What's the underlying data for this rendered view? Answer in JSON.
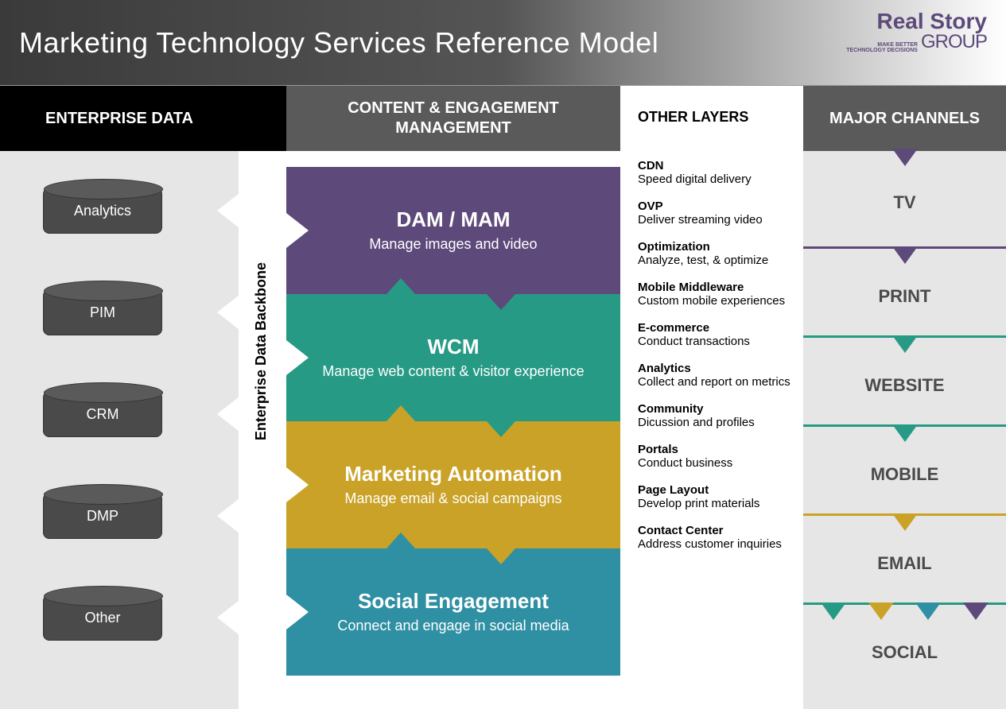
{
  "header": {
    "title": "Marketing Technology Services Reference Model",
    "logo": {
      "top": "Real Story",
      "bottom": "GROUP",
      "tagline_top": "MAKE BETTER",
      "tagline_bottom": "TECHNOLOGY DECISIONS"
    }
  },
  "colors": {
    "purple": "#5d4a7a",
    "teal": "#279a86",
    "gold": "#c9a227",
    "cyan": "#2f8fa3",
    "dark_gray": "#4a4a4a",
    "light_gray": "#e6e6e6",
    "header_black": "#000000",
    "header_gray": "#5a5a5a"
  },
  "columns": {
    "enterprise_data": {
      "header": "ENTERPRISE DATA",
      "items": [
        "Analytics",
        "PIM",
        "CRM",
        "DMP",
        "Other"
      ]
    },
    "backbone_label": "Enterprise Data Backbone",
    "content_mgmt": {
      "header": "CONTENT & ENGAGEMENT MANAGEMENT",
      "blocks": [
        {
          "title": "DAM / MAM",
          "desc": "Manage images and video",
          "color": "#5d4a7a"
        },
        {
          "title": "WCM",
          "desc": "Manage web content & visitor experience",
          "color": "#279a86"
        },
        {
          "title": "Marketing Automation",
          "desc": "Manage email & social campaigns",
          "color": "#c9a227"
        },
        {
          "title": "Social Engagement",
          "desc": "Connect and engage in social media",
          "color": "#2f8fa3"
        }
      ]
    },
    "other_layers": {
      "header": "OTHER LAYERS",
      "items": [
        {
          "t": "CDN",
          "d": "Speed digital delivery"
        },
        {
          "t": "OVP",
          "d": "Deliver streaming video"
        },
        {
          "t": "Optimization",
          "d": "Analyze, test, & optimize"
        },
        {
          "t": "Mobile Middleware",
          "d": "Custom mobile experiences"
        },
        {
          "t": "E-commerce",
          "d": "Conduct transactions"
        },
        {
          "t": "Analytics",
          "d": "Collect and report on metrics"
        },
        {
          "t": "Community",
          "d": "Dicussion and profiles"
        },
        {
          "t": "Portals",
          "d": "Conduct business"
        },
        {
          "t": "Page Layout",
          "d": "Develop print materials"
        },
        {
          "t": "Contact Center",
          "d": "Address customer inquiries"
        }
      ]
    },
    "channels": {
      "header": "MAJOR CHANNELS",
      "items": [
        {
          "label": "TV",
          "triangles": [
            "#5d4a7a"
          ]
        },
        {
          "label": "PRINT",
          "triangles": [
            "#5d4a7a"
          ]
        },
        {
          "label": "WEBSITE",
          "triangles": [
            "#279a86"
          ]
        },
        {
          "label": "MOBILE",
          "triangles": [
            "#279a86"
          ]
        },
        {
          "label": "EMAIL",
          "triangles": [
            "#c9a227"
          ]
        },
        {
          "label": "SOCIAL",
          "triangles": [
            "#279a86",
            "#c9a227",
            "#2f8fa3",
            "#5d4a7a"
          ]
        }
      ]
    }
  }
}
